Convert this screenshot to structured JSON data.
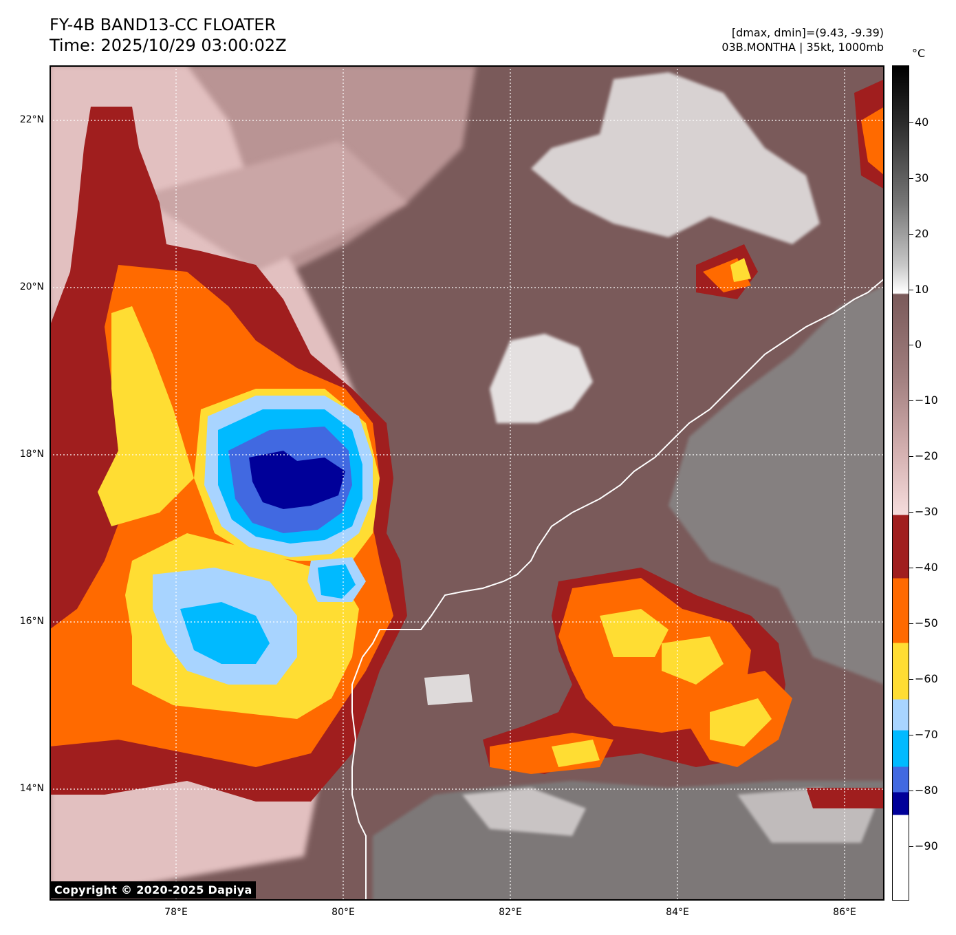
{
  "title": {
    "line1": "FY-4B BAND13-CC FLOATER",
    "line2": "Time: 2025/10/29 03:00:02Z"
  },
  "info": {
    "line1": "[dmax, dmin]=(9.43, -9.39)",
    "line2": "03B.MONTHA | 35kt, 1000mb"
  },
  "map": {
    "lat_labels": [
      "22°N",
      "20°N",
      "18°N",
      "16°N",
      "14°N"
    ],
    "lon_labels": [
      "78°E",
      "80°E",
      "82°E",
      "84°E",
      "86°E"
    ],
    "copyright": "Copyright © 2020-2025 Dapiya"
  },
  "colorbar": {
    "unit": "°C",
    "tick_labels": [
      "40",
      "30",
      "20",
      "10",
      "0",
      "−10",
      "−20",
      "−30",
      "−40",
      "−50",
      "−60",
      "−70",
      "−80",
      "−90"
    ],
    "colors": {
      "warm_black": "#000000",
      "grey": "#808080",
      "white_10": "#ffffff",
      "brown_0": "#7a5a5a",
      "pink_minus30": "#f5dcdc",
      "dark_red": "#a01e1e",
      "orange": "#ff6a00",
      "yellow": "#ffdd33",
      "light_blue": "#a8d4ff",
      "cyan": "#00baff",
      "royal_blue": "#4169e1",
      "navy": "#000099"
    }
  }
}
